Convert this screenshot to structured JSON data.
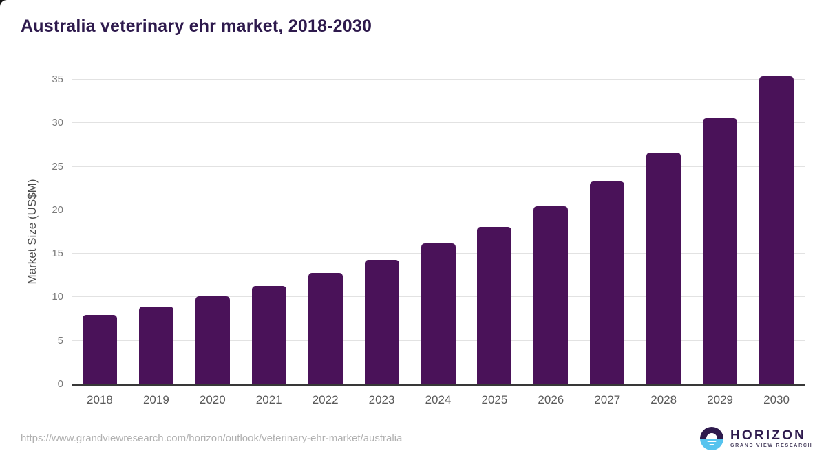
{
  "title": "Australia veterinary ehr market, 2018-2030",
  "source_url": "https://www.grandviewresearch.com/horizon/outlook/veterinary-ehr-market/australia",
  "branding": {
    "name": "HORIZON",
    "tagline": "GRAND VIEW RESEARCH"
  },
  "colors": {
    "bar": "#4a1259",
    "title_text": "#2e1a4d",
    "axis_line": "#383838",
    "gridline": "#e2e2e2",
    "y_tick_text": "#7a7a7a",
    "x_tick_text": "#595959",
    "source_text": "#b0b0b0",
    "logo_blue": "#56c3ee",
    "logo_purple": "#2e1a4d"
  },
  "chart_data": {
    "type": "bar",
    "title": "Australia veterinary ehr market, 2018-2030",
    "categories": [
      "2018",
      "2019",
      "2020",
      "2021",
      "2022",
      "2023",
      "2024",
      "2025",
      "2026",
      "2027",
      "2028",
      "2029",
      "2030"
    ],
    "values": [
      8.0,
      8.9,
      10.1,
      11.3,
      12.8,
      14.3,
      16.2,
      18.1,
      20.5,
      23.3,
      26.6,
      30.6,
      35.4
    ],
    "xlabel": "",
    "ylabel": "Market Size (US$M)",
    "ylim": [
      0,
      35
    ],
    "yticks": [
      0,
      5,
      10,
      15,
      20,
      25,
      30,
      35
    ],
    "grid": true,
    "legend": false,
    "bar_color": "#4a1259"
  }
}
